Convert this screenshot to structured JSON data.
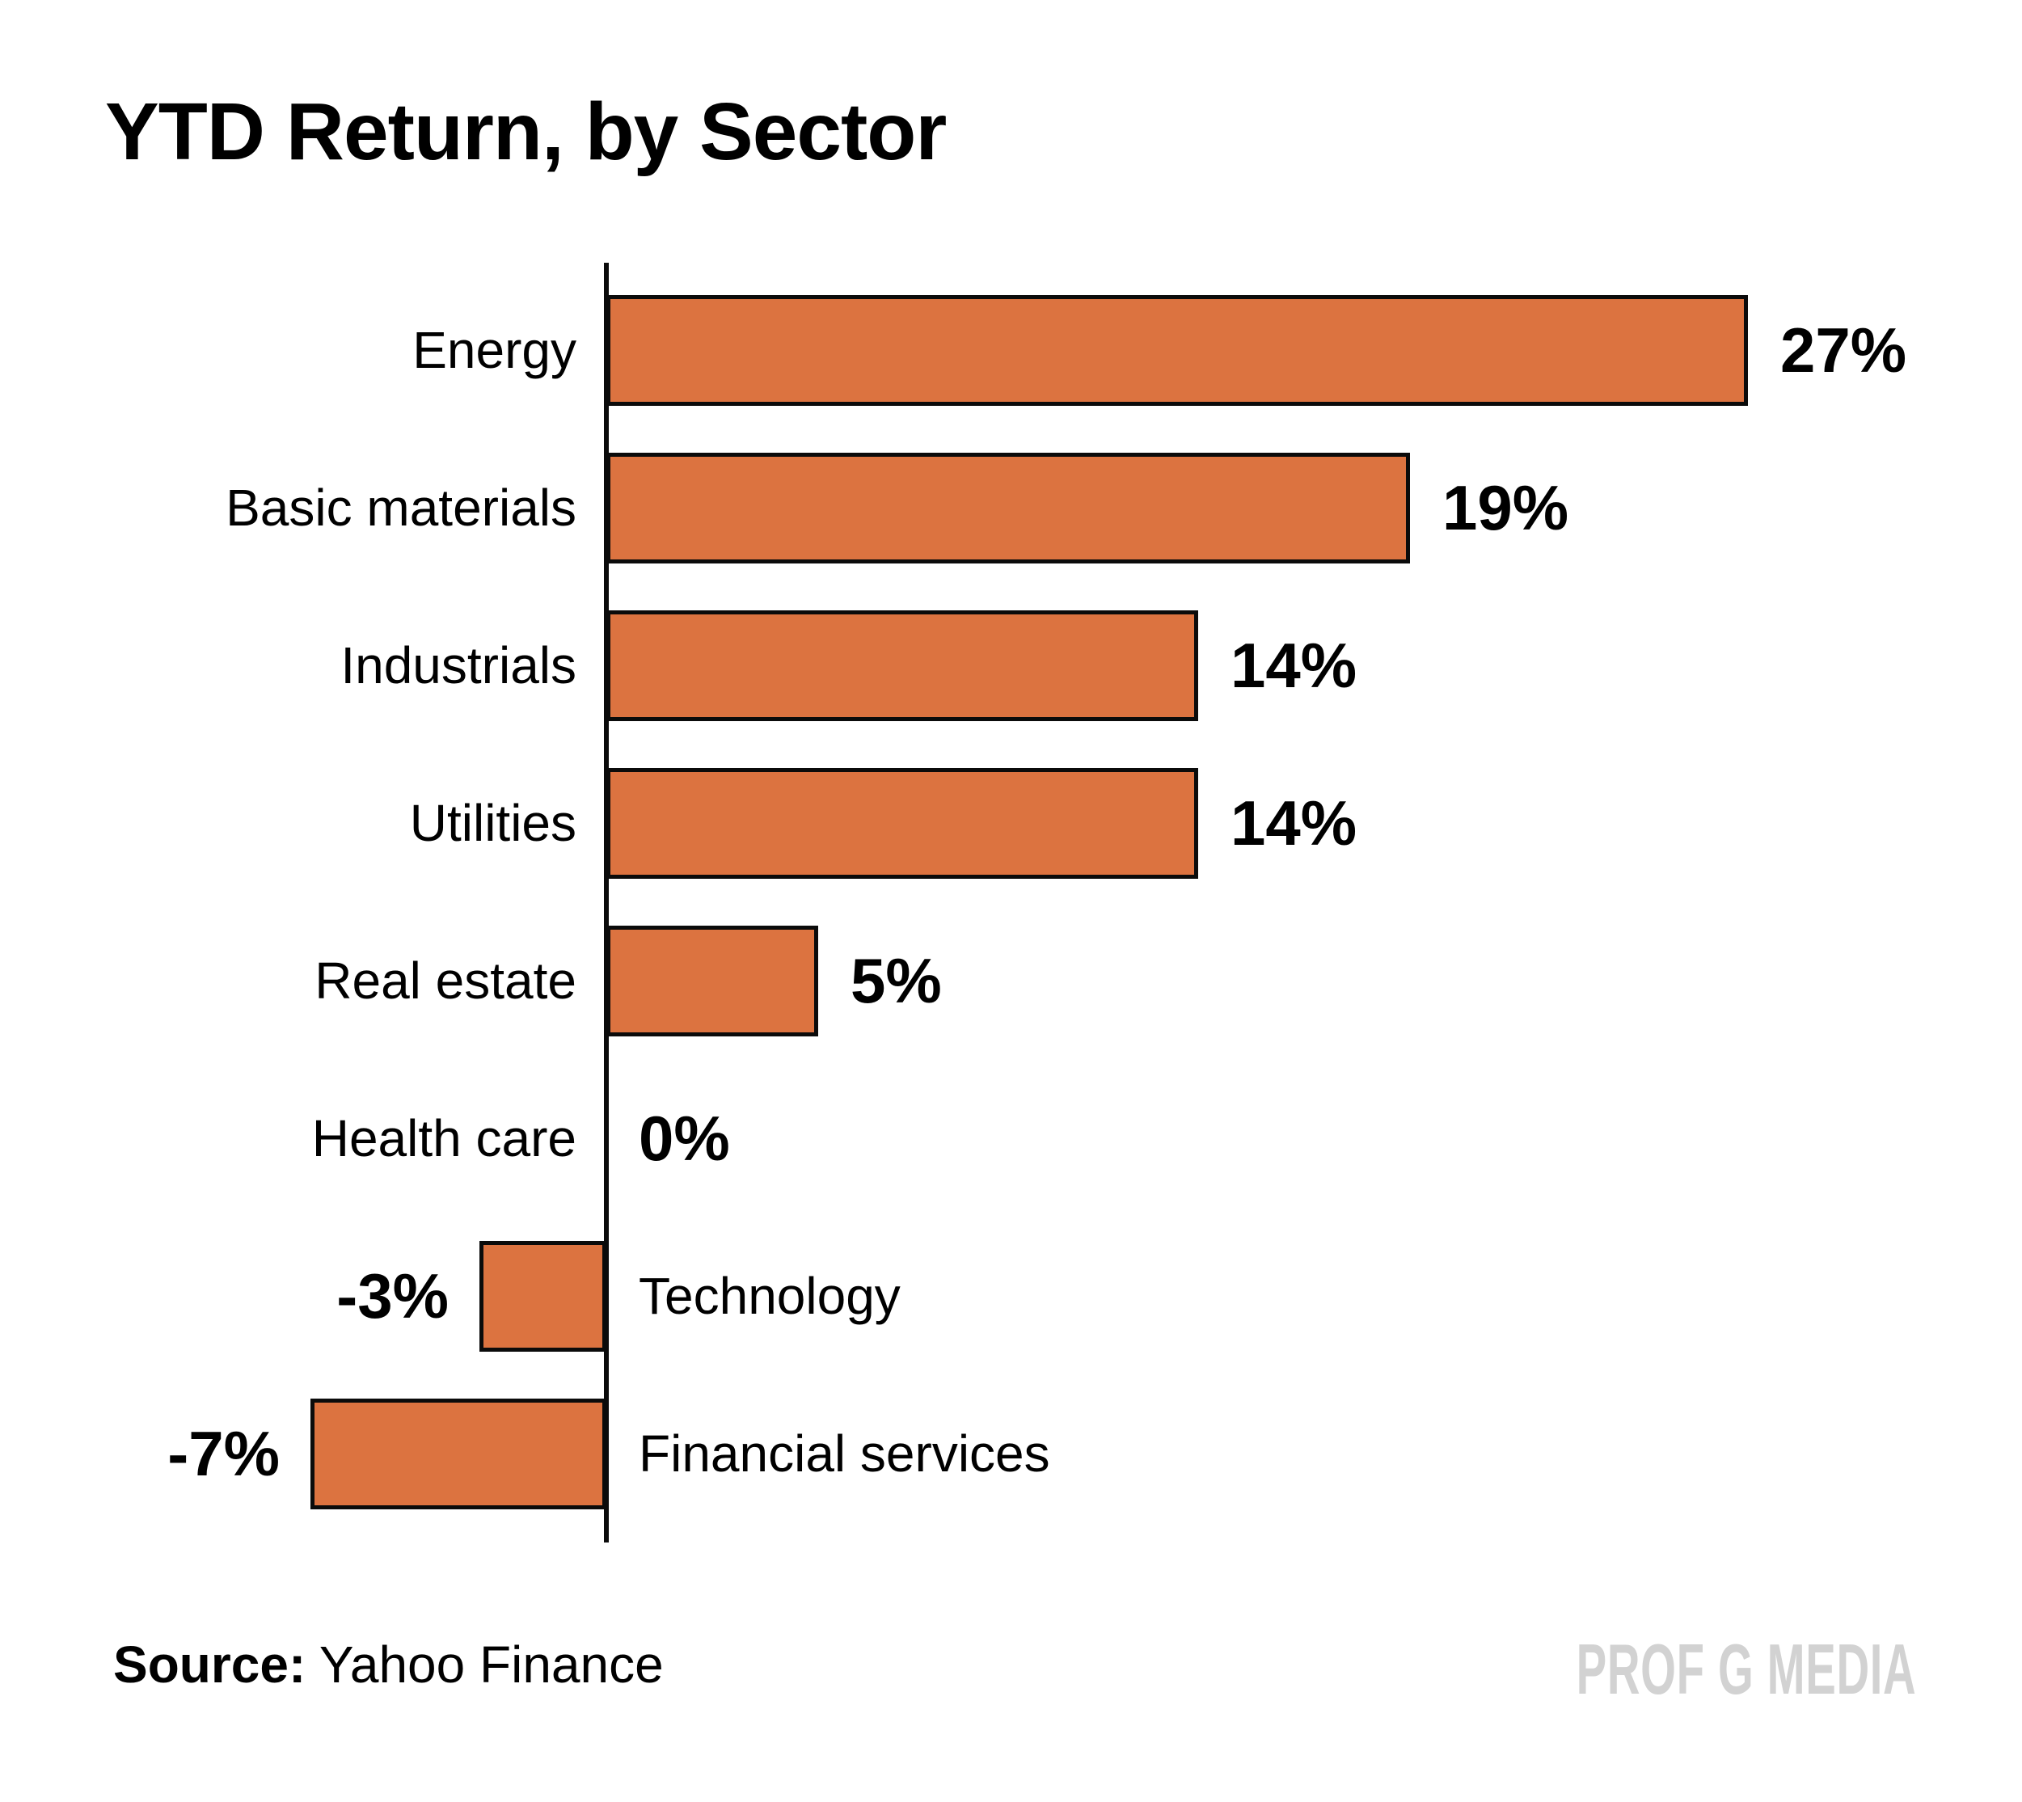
{
  "title": "YTD Return, by Sector",
  "source": {
    "label": "Source:",
    "value": "Yahoo Finance"
  },
  "watermark": "PROF G MEDIA",
  "colors": {
    "background": "#FFFFFF",
    "bar_fill": "#DC7340",
    "bar_border": "#0B0B0B",
    "axis": "#0B0B0B",
    "text": "#000000",
    "watermark": "#D2D2D2"
  },
  "chart_data": {
    "type": "bar",
    "orientation": "horizontal",
    "title": "YTD Return, by Sector",
    "xlabel": "",
    "ylabel": "",
    "xlim": [
      -7,
      27
    ],
    "grid": false,
    "legend": false,
    "categories": [
      "Energy",
      "Basic materials",
      "Industrials",
      "Utilities",
      "Real estate",
      "Health care",
      "Technology",
      "Financial services"
    ],
    "values": [
      27,
      19,
      14,
      14,
      5,
      0,
      -3,
      -7
    ],
    "value_labels": [
      "27%",
      "19%",
      "14%",
      "14%",
      "5%",
      "0%",
      "-3%",
      "-7%"
    ]
  }
}
